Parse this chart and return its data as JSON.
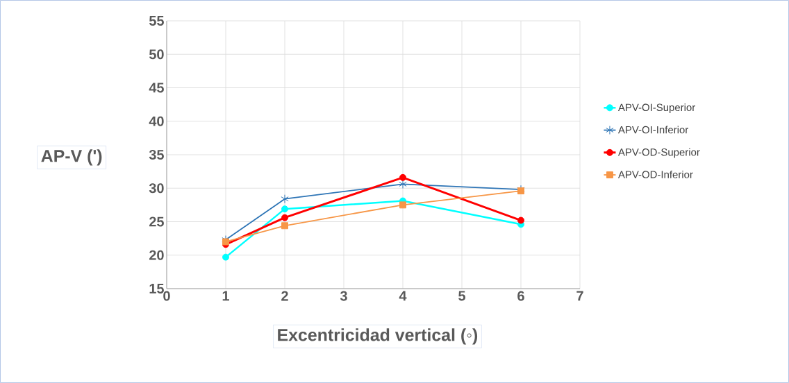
{
  "chart_data": {
    "type": "line",
    "xlabel": "Excentricidad vertical (◦)",
    "ylabel": "AP-V (')",
    "x": [
      1,
      2,
      4,
      6
    ],
    "series": [
      {
        "name": "APV-OI-Superior",
        "color": "#00ffff",
        "marker": "circle",
        "values": [
          19.7,
          26.9,
          28.1,
          24.6
        ]
      },
      {
        "name": "APV-OI-Inferior",
        "color": "#2e75b6",
        "marker": "cross",
        "values": [
          22.3,
          28.4,
          30.6,
          29.8
        ]
      },
      {
        "name": "APV-OD-Superior",
        "color": "#ff0000",
        "marker": "circle",
        "values": [
          21.6,
          25.6,
          31.6,
          25.2
        ]
      },
      {
        "name": "APV-OD-Inferior",
        "color": "#f79646",
        "marker": "square",
        "values": [
          22.0,
          24.4,
          27.5,
          29.6
        ]
      }
    ],
    "xlim": [
      0,
      7
    ],
    "xticks": [
      0,
      1,
      2,
      3,
      4,
      5,
      6,
      7
    ],
    "ylim": [
      15,
      55
    ],
    "yticks": [
      15,
      20,
      25,
      30,
      35,
      40,
      45,
      50,
      55
    ],
    "grid": true,
    "legend": "right"
  }
}
